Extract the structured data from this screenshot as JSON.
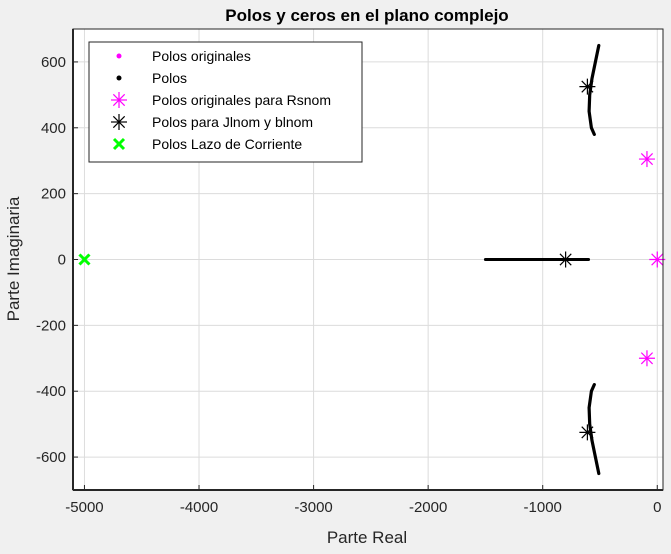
{
  "chart_data": {
    "type": "scatter",
    "title": "Polos y ceros en el plano complejo",
    "xlabel": "Parte Real",
    "ylabel": "Parte Imaginaria",
    "xlim": [
      -5100,
      50
    ],
    "ylim": [
      -700,
      700
    ],
    "xticks": [
      -5000,
      -4000,
      -3000,
      -2000,
      -1000,
      0
    ],
    "yticks": [
      -600,
      -400,
      -200,
      0,
      200,
      400,
      600
    ],
    "grid": true,
    "legend_position": "top-left",
    "series": [
      {
        "name": "Polos originales",
        "marker": "dot",
        "color": "#ff00ff",
        "points": []
      },
      {
        "name": "Polos",
        "marker": "dot",
        "color": "#000000",
        "points_description": "root locus traces",
        "segments": [
          {
            "kind": "real-axis",
            "x_from": -1500,
            "x_to": -600,
            "y": 0
          },
          {
            "kind": "arc",
            "points": [
              [
                -510,
                650
              ],
              [
                -540,
                600
              ],
              [
                -570,
                550
              ],
              [
                -590,
                500
              ],
              [
                -595,
                450
              ],
              [
                -575,
                400
              ],
              [
                -550,
                380
              ]
            ]
          },
          {
            "kind": "arc",
            "points": [
              [
                -510,
                -650
              ],
              [
                -540,
                -600
              ],
              [
                -570,
                -550
              ],
              [
                -590,
                -500
              ],
              [
                -595,
                -450
              ],
              [
                -575,
                -400
              ],
              [
                -550,
                -380
              ]
            ]
          }
        ]
      },
      {
        "name": "Polos originales para Rsnom",
        "marker": "asterisk",
        "color": "#ff00ff",
        "points": [
          [
            -90,
            305
          ],
          [
            0,
            0
          ],
          [
            -90,
            -300
          ]
        ]
      },
      {
        "name": "Polos para Jlnom y blnom",
        "marker": "asterisk",
        "color": "#000000",
        "points": [
          [
            -610,
            525
          ],
          [
            -800,
            0
          ],
          [
            -610,
            -525
          ]
        ]
      },
      {
        "name": "Polos Lazo de Corriente",
        "marker": "x",
        "color": "#00ff00",
        "points": [
          [
            -5000,
            0
          ]
        ]
      }
    ]
  }
}
